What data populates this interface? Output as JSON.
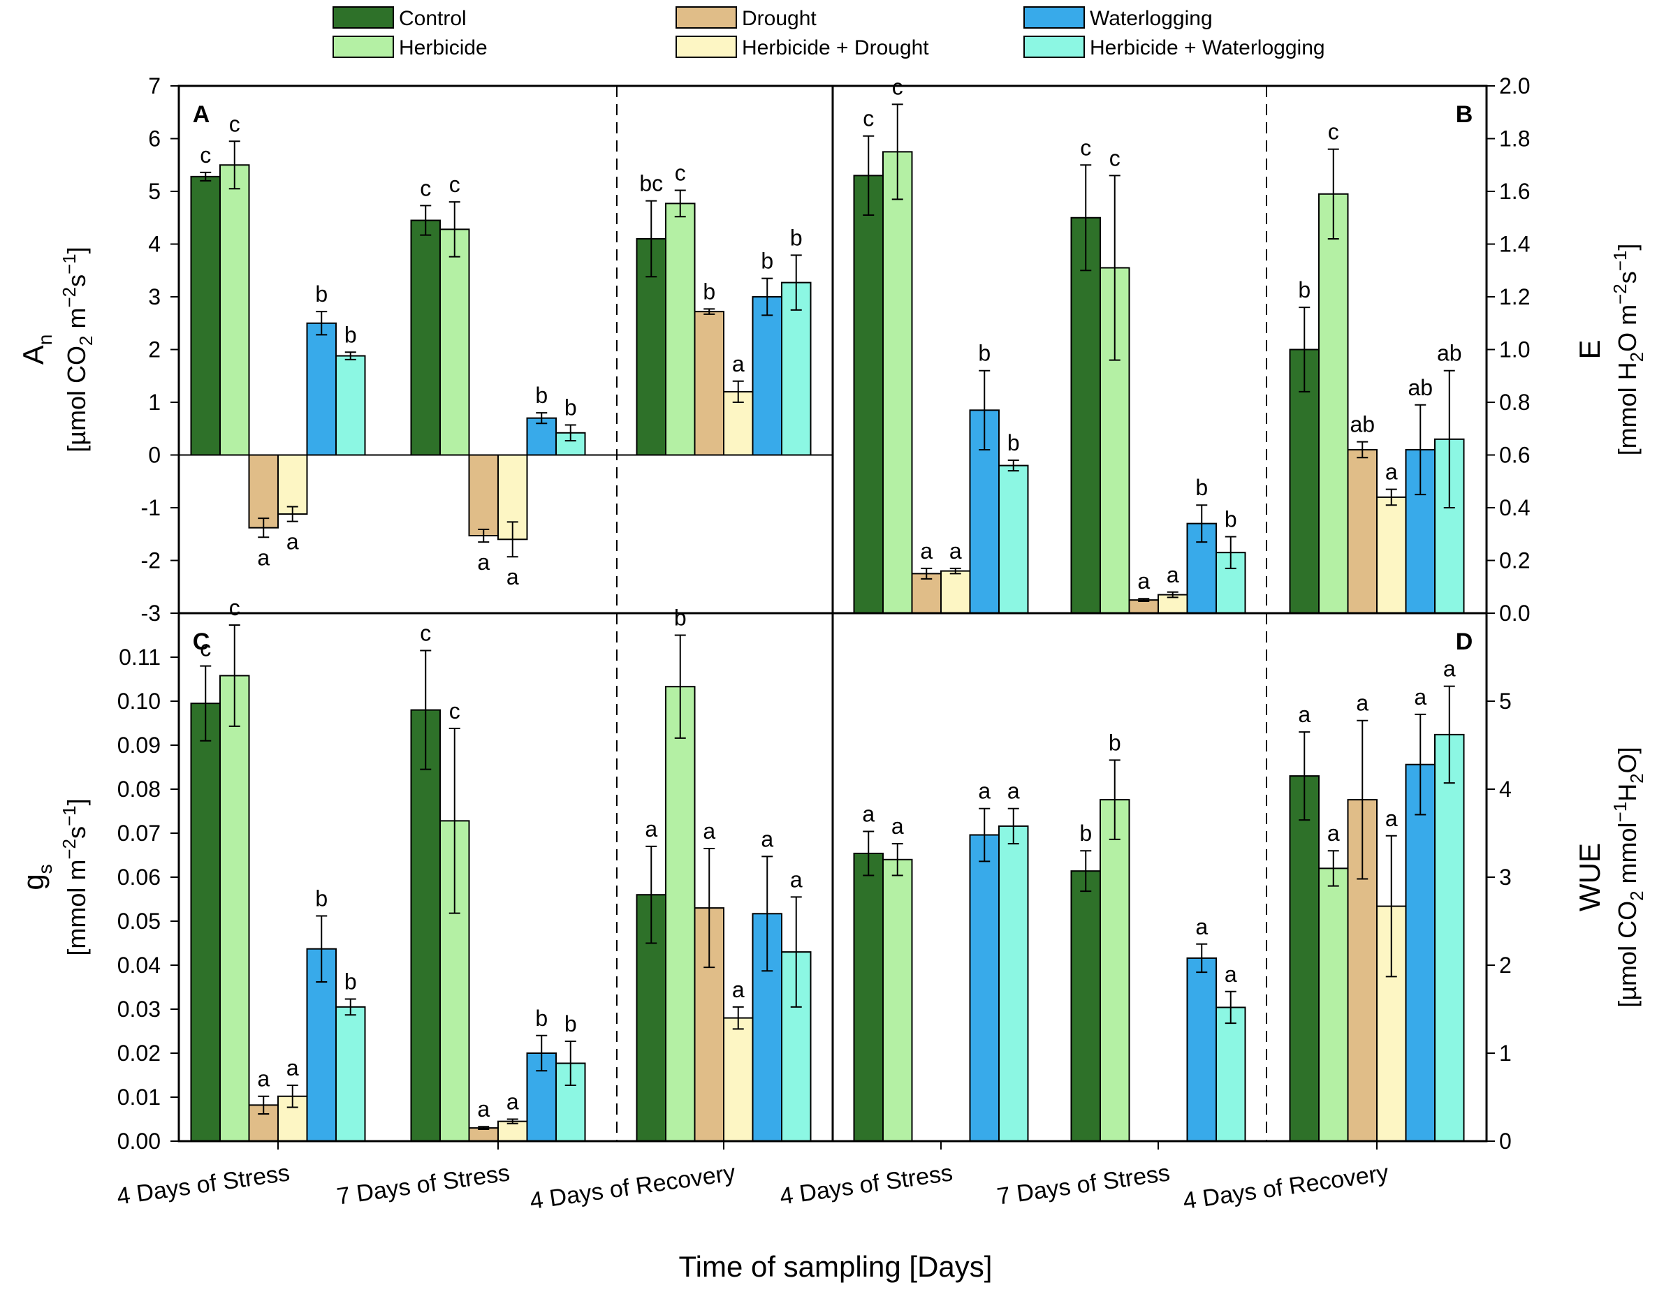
{
  "figure": {
    "xlabel": "Time of sampling [Days]",
    "groups": [
      "4 Days of Stress",
      "7 Days of Stress",
      "4 Days of Recovery"
    ]
  },
  "legend": [
    {
      "name": "Control",
      "color": "#2e7129"
    },
    {
      "name": "Herbicide",
      "color": "#b4f0a4"
    },
    {
      "name": "Drought",
      "color": "#e0bd88"
    },
    {
      "name": "Herbicide + Drought",
      "color": "#fdf6c4"
    },
    {
      "name": "Waterlogging",
      "color": "#38aaea"
    },
    {
      "name": "Herbicide + Waterlogging",
      "color": "#8cf7e3"
    }
  ],
  "chart_data": [
    {
      "panel": "A",
      "type": "bar",
      "ylabel_main": "A",
      "ylabel_sub": "n",
      "ylabel_unit": [
        "[µmol CO",
        "2",
        " m",
        "−2",
        "s",
        "−1",
        "]"
      ],
      "ylim": [
        -3,
        7
      ],
      "yticks": [
        -3,
        -2,
        -1,
        0,
        1,
        2,
        3,
        4,
        5,
        6,
        7
      ],
      "tick_decimals": 0,
      "categories": [
        "4 Days of Stress",
        "7 Days of Stress",
        "4 Days of Recovery"
      ],
      "series": [
        {
          "name": "Control",
          "values": [
            5.28,
            4.45,
            4.1
          ],
          "errors": [
            0.08,
            0.28,
            0.72
          ],
          "letters": [
            "c",
            "c",
            "bc"
          ]
        },
        {
          "name": "Herbicide",
          "values": [
            5.5,
            4.28,
            4.77
          ],
          "errors": [
            0.45,
            0.52,
            0.25
          ],
          "letters": [
            "c",
            "c",
            "c"
          ]
        },
        {
          "name": "Drought",
          "values": [
            -1.38,
            -1.53,
            2.72
          ],
          "errors": [
            0.18,
            0.12,
            0.05
          ],
          "letters": [
            "a",
            "a",
            "b"
          ]
        },
        {
          "name": "Herbicide + Drought",
          "values": [
            -1.12,
            -1.6,
            1.2
          ],
          "errors": [
            0.14,
            0.33,
            0.2
          ],
          "letters": [
            "a",
            "a",
            "a"
          ]
        },
        {
          "name": "Waterlogging",
          "values": [
            2.5,
            0.7,
            3.0
          ],
          "errors": [
            0.22,
            0.1,
            0.35
          ],
          "letters": [
            "b",
            "b",
            "b"
          ]
        },
        {
          "name": "Herbicide + Waterlogging",
          "values": [
            1.88,
            0.42,
            3.27
          ],
          "errors": [
            0.07,
            0.15,
            0.52
          ],
          "letters": [
            "b",
            "b",
            "b"
          ]
        }
      ]
    },
    {
      "panel": "B",
      "type": "bar",
      "ylabel_main": "E",
      "ylabel_unit": [
        "[mmol H",
        "2",
        "O m",
        "−2",
        "s",
        "−1",
        "]"
      ],
      "ylim": [
        0,
        2.0
      ],
      "yticks": [
        0,
        0.2,
        0.4,
        0.6,
        0.8,
        1.0,
        1.2,
        1.4,
        1.6,
        1.8,
        2.0
      ],
      "tick_decimals": 1,
      "categories": [
        "4 Days of Stress",
        "7 Days of Stress",
        "4 Days of Recovery"
      ],
      "series": [
        {
          "name": "Control",
          "values": [
            1.66,
            1.5,
            1.0
          ],
          "errors": [
            0.15,
            0.2,
            0.16
          ],
          "letters": [
            "c",
            "c",
            "b"
          ]
        },
        {
          "name": "Herbicide",
          "values": [
            1.75,
            1.31,
            1.59
          ],
          "errors": [
            0.18,
            0.35,
            0.17
          ],
          "letters": [
            "c",
            "c",
            "c"
          ]
        },
        {
          "name": "Drought",
          "values": [
            0.15,
            0.05,
            0.62
          ],
          "errors": [
            0.02,
            0.005,
            0.03
          ],
          "letters": [
            "a",
            "a",
            "ab"
          ]
        },
        {
          "name": "Herbicide + Drought",
          "values": [
            0.16,
            0.07,
            0.44
          ],
          "errors": [
            0.01,
            0.01,
            0.03
          ],
          "letters": [
            "a",
            "a",
            "a"
          ]
        },
        {
          "name": "Waterlogging",
          "values": [
            0.77,
            0.34,
            0.62
          ],
          "errors": [
            0.15,
            0.07,
            0.17
          ],
          "letters": [
            "b",
            "b",
            "ab"
          ]
        },
        {
          "name": "Herbicide + Waterlogging",
          "values": [
            0.56,
            0.23,
            0.66
          ],
          "errors": [
            0.02,
            0.06,
            0.26
          ],
          "letters": [
            "b",
            "b",
            "ab"
          ]
        }
      ]
    },
    {
      "panel": "C",
      "type": "bar",
      "ylabel_main": "g",
      "ylabel_sub": "s",
      "ylabel_unit": [
        "[mmol m",
        "−2",
        "s",
        "−1",
        "]"
      ],
      "ylim": [
        0,
        0.12
      ],
      "yticks": [
        0,
        0.01,
        0.02,
        0.03,
        0.04,
        0.05,
        0.06,
        0.07,
        0.08,
        0.09,
        0.1,
        0.11
      ],
      "tick_decimals": 2,
      "categories": [
        "4 Days of Stress",
        "7 Days of Stress",
        "4 Days of Recovery"
      ],
      "series": [
        {
          "name": "Control",
          "values": [
            0.0995,
            0.098,
            0.056
          ],
          "errors": [
            0.0085,
            0.0135,
            0.011
          ],
          "letters": [
            "c",
            "c",
            "a"
          ]
        },
        {
          "name": "Herbicide",
          "values": [
            0.1058,
            0.0728,
            0.1033
          ],
          "errors": [
            0.0115,
            0.021,
            0.0117
          ],
          "letters": [
            "c",
            "c",
            "b"
          ]
        },
        {
          "name": "Drought",
          "values": [
            0.0082,
            0.003,
            0.053
          ],
          "errors": [
            0.002,
            0.0003,
            0.0135
          ],
          "letters": [
            "a",
            "a",
            "a"
          ]
        },
        {
          "name": "Herbicide + Drought",
          "values": [
            0.0102,
            0.0045,
            0.028
          ],
          "errors": [
            0.0025,
            0.0005,
            0.0025
          ],
          "letters": [
            "a",
            "a",
            "a"
          ]
        },
        {
          "name": "Waterlogging",
          "values": [
            0.0437,
            0.02,
            0.0517
          ],
          "errors": [
            0.0075,
            0.004,
            0.013
          ],
          "letters": [
            "b",
            "b",
            "a"
          ]
        },
        {
          "name": "Herbicide + Waterlogging",
          "values": [
            0.0305,
            0.0177,
            0.043
          ],
          "errors": [
            0.0018,
            0.005,
            0.0125
          ],
          "letters": [
            "b",
            "b",
            "a"
          ]
        }
      ]
    },
    {
      "panel": "D",
      "type": "bar",
      "ylabel_main": "WUE",
      "ylabel_unit": [
        "[µmol CO",
        "2",
        " mmol",
        "−1",
        "H",
        "2",
        "O]"
      ],
      "ylim": [
        0,
        6
      ],
      "yticks": [
        0,
        1,
        2,
        3,
        4,
        5
      ],
      "tick_decimals": 0,
      "categories": [
        "4 Days of Stress",
        "7 Days of Stress",
        "4 Days of Recovery"
      ],
      "series": [
        {
          "name": "Control",
          "values": [
            3.27,
            3.07,
            4.15
          ],
          "errors": [
            0.25,
            0.23,
            0.5
          ],
          "letters": [
            "a",
            "b",
            "a"
          ]
        },
        {
          "name": "Herbicide",
          "values": [
            3.2,
            3.88,
            3.1
          ],
          "errors": [
            0.18,
            0.45,
            0.2
          ],
          "letters": [
            "a",
            "b",
            "a"
          ]
        },
        {
          "name": "Drought",
          "values": [
            null,
            null,
            3.88
          ],
          "errors": [
            null,
            null,
            0.9
          ],
          "letters": [
            "",
            "",
            "a"
          ]
        },
        {
          "name": "Herbicide + Drought",
          "values": [
            null,
            null,
            2.67
          ],
          "errors": [
            null,
            null,
            0.8
          ],
          "letters": [
            "",
            "",
            "a"
          ]
        },
        {
          "name": "Waterlogging",
          "values": [
            3.48,
            2.08,
            4.28
          ],
          "errors": [
            0.3,
            0.16,
            0.57
          ],
          "letters": [
            "a",
            "a",
            "a"
          ]
        },
        {
          "name": "Herbicide + Waterlogging",
          "values": [
            3.58,
            1.52,
            4.62
          ],
          "errors": [
            0.2,
            0.18,
            0.55
          ],
          "letters": [
            "a",
            "a",
            "a"
          ]
        }
      ]
    }
  ]
}
